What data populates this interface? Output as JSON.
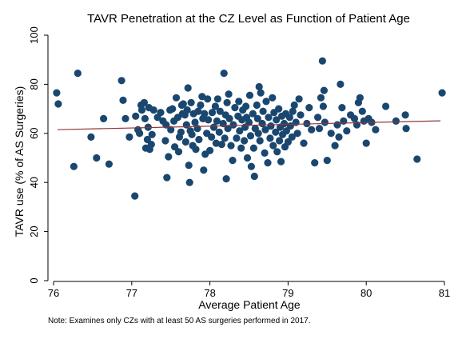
{
  "chart_data": {
    "type": "scatter",
    "title": "TAVR Penetration at the CZ Level as Function of Patient Age",
    "xlabel": "Average Patient Age",
    "ylabel": "TAVR use (% of AS Surgeries)",
    "note": "Note: Examines only CZs with at least 50 AS surgeries performed in 2017.",
    "xlim": [
      76,
      81
    ],
    "ylim": [
      0,
      100
    ],
    "x_ticks": [
      "76",
      "77",
      "78",
      "79",
      "80",
      "81"
    ],
    "y_ticks": [
      "0",
      "20",
      "40",
      "60",
      "80",
      "100"
    ],
    "grid": false,
    "colors": {
      "marker": "#1a476f",
      "fit_line": "#90353b",
      "background": "#ffffff",
      "axis": "#000000"
    },
    "fit_line": {
      "x": [
        76.05,
        80.95
      ],
      "y": [
        61.5,
        65.1
      ]
    },
    "points": [
      [
        76.04,
        76.5
      ],
      [
        76.06,
        72.0
      ],
      [
        76.26,
        46.5
      ],
      [
        76.31,
        84.5
      ],
      [
        76.48,
        58.5
      ],
      [
        76.55,
        50.0
      ],
      [
        76.64,
        66.0
      ],
      [
        76.71,
        47.5
      ],
      [
        76.87,
        81.5
      ],
      [
        76.89,
        73.5
      ],
      [
        76.92,
        66.0
      ],
      [
        76.97,
        58.5
      ],
      [
        77.04,
        34.5
      ],
      [
        77.05,
        67.0
      ],
      [
        77.08,
        61.5
      ],
      [
        77.1,
        60.0
      ],
      [
        77.12,
        71.5
      ],
      [
        77.13,
        69.5
      ],
      [
        77.16,
        72.5
      ],
      [
        77.17,
        66.0
      ],
      [
        77.18,
        54.0
      ],
      [
        77.2,
        57.5
      ],
      [
        77.21,
        62.5
      ],
      [
        77.22,
        70.5
      ],
      [
        77.23,
        53.5
      ],
      [
        77.25,
        55.5
      ],
      [
        77.26,
        59.5
      ],
      [
        77.28,
        69.5
      ],
      [
        77.33,
        66.5
      ],
      [
        77.37,
        68.5
      ],
      [
        77.4,
        65.0
      ],
      [
        77.43,
        57.0
      ],
      [
        77.44,
        63.5
      ],
      [
        77.45,
        42.0
      ],
      [
        77.47,
        50.5
      ],
      [
        77.49,
        69.5
      ],
      [
        77.5,
        61.5
      ],
      [
        77.52,
        70.0
      ],
      [
        77.54,
        65.0
      ],
      [
        77.55,
        54.5
      ],
      [
        77.57,
        74.5
      ],
      [
        77.59,
        66.5
      ],
      [
        77.6,
        52.5
      ],
      [
        77.61,
        58.5
      ],
      [
        77.63,
        60.5
      ],
      [
        77.64,
        71.5
      ],
      [
        77.65,
        68.0
      ],
      [
        77.66,
        72.0
      ],
      [
        77.68,
        67.5
      ],
      [
        77.69,
        56.5
      ],
      [
        77.7,
        63.5
      ],
      [
        77.71,
        69.5
      ],
      [
        77.72,
        78.5
      ],
      [
        77.73,
        47.0
      ],
      [
        77.74,
        40.0
      ],
      [
        77.75,
        61.0
      ],
      [
        77.76,
        72.5
      ],
      [
        77.77,
        59.5
      ],
      [
        77.78,
        55.0
      ],
      [
        77.79,
        68.0
      ],
      [
        77.81,
        64.5
      ],
      [
        77.82,
        53.5
      ],
      [
        77.84,
        62.0
      ],
      [
        77.85,
        69.0
      ],
      [
        77.86,
        57.5
      ],
      [
        77.88,
        71.5
      ],
      [
        77.9,
        75.0
      ],
      [
        77.91,
        66.0
      ],
      [
        77.92,
        45.0
      ],
      [
        77.93,
        68.0
      ],
      [
        77.94,
        51.5
      ],
      [
        77.96,
        60.0
      ],
      [
        77.97,
        74.0
      ],
      [
        77.98,
        65.5
      ],
      [
        78.0,
        53.0
      ],
      [
        78.02,
        58.5
      ],
      [
        78.03,
        68.5
      ],
      [
        78.05,
        62.5
      ],
      [
        78.07,
        71.0
      ],
      [
        78.08,
        56.0
      ],
      [
        78.09,
        65.0
      ],
      [
        78.1,
        74.0
      ],
      [
        78.12,
        60.5
      ],
      [
        78.13,
        69.0
      ],
      [
        78.15,
        55.5
      ],
      [
        78.17,
        64.0
      ],
      [
        78.18,
        84.5
      ],
      [
        78.19,
        58.0
      ],
      [
        78.2,
        67.5
      ],
      [
        78.21,
        41.5
      ],
      [
        78.22,
        72.5
      ],
      [
        78.23,
        62.0
      ],
      [
        78.24,
        76.0
      ],
      [
        78.25,
        66.0
      ],
      [
        78.27,
        55.0
      ],
      [
        78.29,
        49.0
      ],
      [
        78.3,
        63.5
      ],
      [
        78.32,
        70.5
      ],
      [
        78.34,
        58.0
      ],
      [
        78.36,
        67.0
      ],
      [
        78.37,
        73.0
      ],
      [
        78.38,
        61.0
      ],
      [
        78.4,
        54.0
      ],
      [
        78.41,
        65.5
      ],
      [
        78.42,
        69.5
      ],
      [
        78.44,
        57.0
      ],
      [
        78.45,
        62.5
      ],
      [
        78.46,
        71.0
      ],
      [
        78.47,
        66.5
      ],
      [
        78.48,
        50.0
      ],
      [
        78.5,
        64.5
      ],
      [
        78.51,
        75.5
      ],
      [
        78.52,
        59.0
      ],
      [
        78.53,
        46.5
      ],
      [
        78.55,
        68.0
      ],
      [
        78.56,
        54.0
      ],
      [
        78.57,
        42.5
      ],
      [
        78.58,
        62.0
      ],
      [
        78.6,
        71.5
      ],
      [
        78.61,
        66.0
      ],
      [
        78.62,
        60.0
      ],
      [
        78.63,
        79.0
      ],
      [
        78.64,
        57.0
      ],
      [
        78.65,
        76.5
      ],
      [
        78.67,
        64.0
      ],
      [
        78.68,
        69.0
      ],
      [
        78.7,
        52.0
      ],
      [
        78.71,
        61.5
      ],
      [
        78.72,
        73.0
      ],
      [
        78.74,
        48.0
      ],
      [
        78.75,
        66.5
      ],
      [
        78.77,
        58.0
      ],
      [
        78.78,
        63.0
      ],
      [
        78.8,
        74.5
      ],
      [
        78.81,
        55.0
      ],
      [
        78.82,
        68.5
      ],
      [
        78.84,
        60.5
      ],
      [
        78.85,
        65.5
      ],
      [
        78.86,
        52.5
      ],
      [
        78.88,
        70.0
      ],
      [
        78.89,
        57.0
      ],
      [
        78.9,
        62.5
      ],
      [
        78.91,
        48.5
      ],
      [
        78.92,
        67.0
      ],
      [
        78.93,
        59.5
      ],
      [
        78.95,
        64.0
      ],
      [
        78.96,
        54.5
      ],
      [
        78.97,
        68.0
      ],
      [
        78.98,
        61.0
      ],
      [
        79.0,
        56.5
      ],
      [
        79.02,
        66.5
      ],
      [
        79.03,
        63.0
      ],
      [
        79.05,
        58.5
      ],
      [
        79.06,
        69.0
      ],
      [
        79.08,
        71.5
      ],
      [
        79.1,
        64.5
      ],
      [
        79.12,
        60.0
      ],
      [
        79.14,
        74.0
      ],
      [
        79.16,
        67.5
      ],
      [
        79.2,
        56.0
      ],
      [
        79.24,
        64.0
      ],
      [
        79.27,
        70.5
      ],
      [
        79.3,
        61.5
      ],
      [
        79.34,
        48.0
      ],
      [
        79.38,
        66.5
      ],
      [
        79.4,
        62.0
      ],
      [
        79.42,
        74.5
      ],
      [
        79.44,
        89.5
      ],
      [
        79.45,
        71.0
      ],
      [
        79.46,
        77.5
      ],
      [
        79.47,
        64.5
      ],
      [
        79.5,
        49.0
      ],
      [
        79.55,
        60.0
      ],
      [
        79.6,
        55.0
      ],
      [
        79.63,
        63.5
      ],
      [
        79.65,
        58.5
      ],
      [
        79.67,
        80.0
      ],
      [
        79.69,
        70.5
      ],
      [
        79.71,
        65.0
      ],
      [
        79.75,
        61.0
      ],
      [
        79.8,
        67.5
      ],
      [
        79.85,
        66.0
      ],
      [
        79.88,
        63.5
      ],
      [
        79.9,
        72.5
      ],
      [
        79.92,
        74.5
      ],
      [
        79.95,
        69.0
      ],
      [
        79.97,
        65.0
      ],
      [
        80.0,
        56.0
      ],
      [
        80.03,
        66.0
      ],
      [
        80.07,
        64.5
      ],
      [
        80.12,
        61.5
      ],
      [
        80.25,
        71.0
      ],
      [
        80.38,
        65.0
      ],
      [
        80.5,
        67.5
      ],
      [
        80.51,
        62.0
      ],
      [
        80.65,
        49.5
      ],
      [
        80.97,
        76.5
      ]
    ]
  }
}
